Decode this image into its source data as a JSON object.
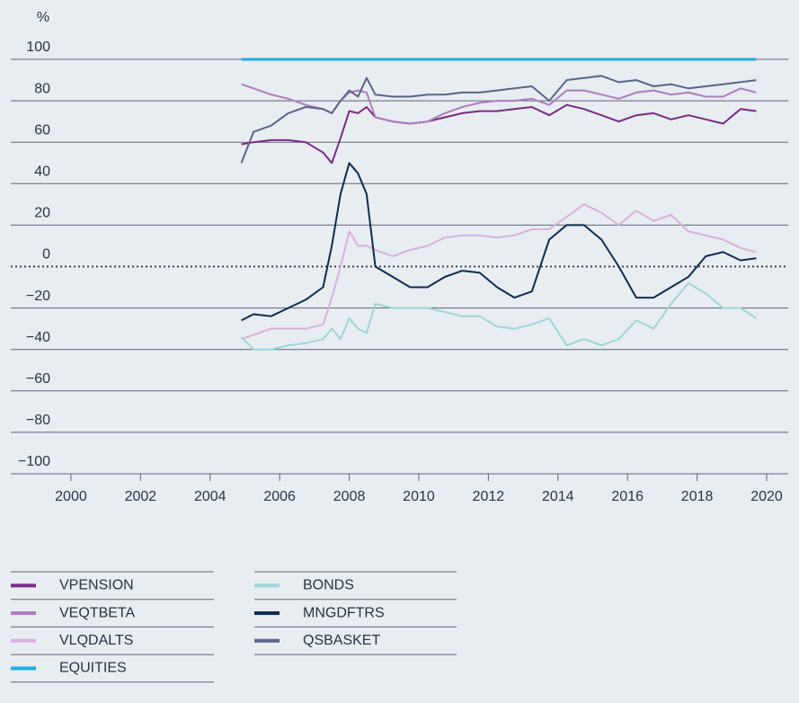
{
  "chart_data": {
    "type": "line",
    "y_label": "%",
    "legend": "bottom",
    "grid": true,
    "xlim": [
      1998.27,
      2020.62
    ],
    "xticks": [
      2000,
      2002,
      2004,
      2006,
      2008,
      2010,
      2012,
      2014,
      2016,
      2018,
      2020
    ],
    "ylim": [
      -100,
      100
    ],
    "yticks": [
      100,
      80,
      60,
      40,
      20,
      0,
      {
        "value": -20,
        "label": "−20"
      },
      {
        "value": -40,
        "label": "−40"
      },
      {
        "value": -60,
        "label": "−60"
      },
      {
        "value": -80,
        "label": "−80"
      },
      {
        "value": -100,
        "label": "−100"
      }
    ],
    "x": [
      2004.9,
      2005.25,
      2005.75,
      2006.25,
      2006.75,
      2007.25,
      2007.5,
      2007.75,
      2008,
      2008.25,
      2008.5,
      2008.75,
      2009.25,
      2009.75,
      2010.25,
      2010.75,
      2011.25,
      2011.75,
      2012.25,
      2012.75,
      2013.25,
      2013.75,
      2014.25,
      2014.75,
      2015.25,
      2015.75,
      2016.25,
      2016.75,
      2017.25,
      2017.75,
      2018.25,
      2018.75,
      2019.25,
      2019.7
    ],
    "series": [
      {
        "name": "VPENSION",
        "color": "#7b2a86",
        "values": [
          59,
          60,
          61,
          61,
          60,
          55,
          50,
          62,
          75,
          74,
          77,
          72,
          70,
          69,
          70,
          72,
          74,
          75,
          75,
          76,
          77,
          73,
          78,
          76,
          73,
          70,
          73,
          74,
          71,
          73,
          71,
          69,
          76,
          75
        ]
      },
      {
        "name": "VEQTBETA",
        "color": "#b07cc0",
        "values": [
          88,
          86,
          83,
          81,
          78,
          76,
          74,
          80,
          84,
          85,
          84,
          72,
          70,
          69,
          70,
          74,
          77,
          79,
          80,
          80,
          81,
          78,
          85,
          85,
          83,
          81,
          84,
          85,
          83,
          84,
          82,
          82,
          86,
          84
        ]
      },
      {
        "name": "VLQDALTS",
        "color": "#d9b2dd",
        "values": [
          -35,
          -33,
          -30,
          -30,
          -30,
          -28,
          -15,
          0,
          17,
          10,
          10,
          8,
          5,
          8,
          10,
          14,
          15,
          15,
          14,
          15,
          18,
          18,
          24,
          30,
          26,
          20,
          27,
          22,
          25,
          17,
          15,
          13,
          9,
          7
        ]
      },
      {
        "name": "EQUITIES",
        "color": "#1eafdf",
        "values": [
          100,
          100,
          100,
          100,
          100,
          100,
          100,
          100,
          100,
          100,
          100,
          100,
          100,
          100,
          100,
          100,
          100,
          100,
          100,
          100,
          100,
          100,
          100,
          100,
          100,
          100,
          100,
          100,
          100,
          100,
          100,
          100,
          100,
          100
        ]
      },
      {
        "name": "BONDS",
        "color": "#9fd6d8",
        "values": [
          -34,
          -40,
          -40,
          -38,
          -37,
          -35,
          -30,
          -35,
          -25,
          -30,
          -32,
          -18,
          -20,
          -20,
          -20,
          -22,
          -24,
          -24,
          -29,
          -30,
          -28,
          -25,
          -38,
          -35,
          -38,
          -35,
          -26,
          -30,
          -18,
          -8,
          -13,
          -20,
          -20,
          -25
        ]
      },
      {
        "name": "MNGDFTRS",
        "color": "#0e2c50",
        "values": [
          -26,
          -23,
          -24,
          -20,
          -16,
          -10,
          10,
          35,
          50,
          45,
          35,
          0,
          -5,
          -10,
          -10,
          -5,
          -2,
          -3,
          -10,
          -15,
          -12,
          13,
          20,
          20,
          13,
          0,
          -15,
          -15,
          -10,
          -5,
          5,
          7,
          3,
          4
        ]
      },
      {
        "name": "QSBASKET",
        "color": "#5c6389",
        "values": [
          50,
          65,
          68,
          74,
          77,
          76,
          74,
          80,
          85,
          82,
          91,
          83,
          82,
          82,
          83,
          83,
          84,
          84,
          85,
          86,
          87,
          80,
          90,
          91,
          92,
          89,
          90,
          87,
          88,
          86,
          87,
          88,
          89,
          90
        ]
      }
    ]
  }
}
